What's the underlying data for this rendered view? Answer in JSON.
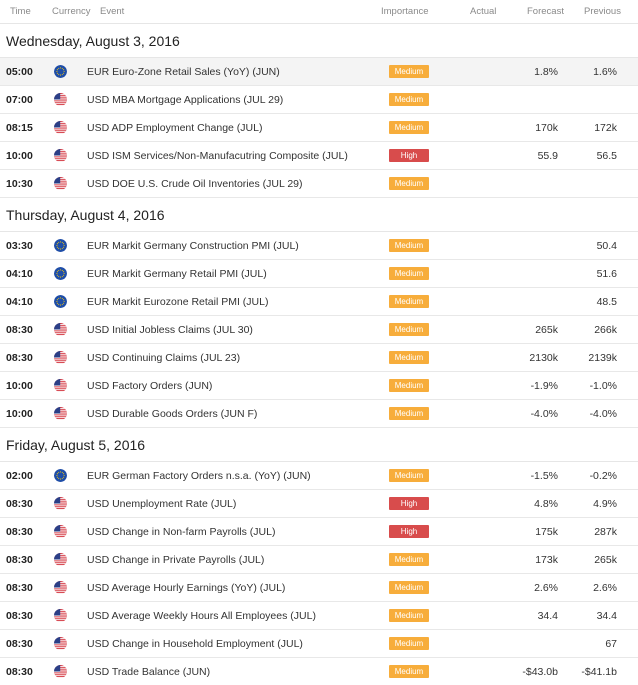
{
  "columns": {
    "time": "Time",
    "currency": "Currency",
    "event": "Event",
    "importance": "Importance",
    "actual": "Actual",
    "forecast": "Forecast",
    "previous": "Previous"
  },
  "days": [
    {
      "title": "Wednesday, August 3, 2016",
      "events": [
        {
          "time": "05:00",
          "flag": "eu-flag-icon",
          "event": "EUR Euro-Zone Retail Sales (YoY) (JUN)",
          "importance": "Medium",
          "level": "medium",
          "actual": "",
          "forecast": "1.8%",
          "previous": "1.6%"
        },
        {
          "time": "07:00",
          "flag": "us-flag-icon",
          "event": "USD MBA Mortgage Applications (JUL 29)",
          "importance": "Medium",
          "level": "medium",
          "actual": "",
          "forecast": "",
          "previous": ""
        },
        {
          "time": "08:15",
          "flag": "us-flag-icon",
          "event": "USD ADP Employment Change (JUL)",
          "importance": "Medium",
          "level": "medium",
          "actual": "",
          "forecast": "170k",
          "previous": "172k"
        },
        {
          "time": "10:00",
          "flag": "us-flag-icon",
          "event": "USD ISM Services/Non-Manufacutring Composite (JUL)",
          "importance": "High",
          "level": "high",
          "actual": "",
          "forecast": "55.9",
          "previous": "56.5"
        },
        {
          "time": "10:30",
          "flag": "us-flag-icon",
          "event": "USD DOE U.S. Crude Oil Inventories (JUL 29)",
          "importance": "Medium",
          "level": "medium",
          "actual": "",
          "forecast": "",
          "previous": ""
        }
      ]
    },
    {
      "title": "Thursday, August 4, 2016",
      "events": [
        {
          "time": "03:30",
          "flag": "eu-flag-icon",
          "event": "EUR Markit Germany Construction PMI (JUL)",
          "importance": "Medium",
          "level": "medium",
          "actual": "",
          "forecast": "",
          "previous": "50.4"
        },
        {
          "time": "04:10",
          "flag": "eu-flag-icon",
          "event": "EUR Markit Germany Retail PMI (JUL)",
          "importance": "Medium",
          "level": "medium",
          "actual": "",
          "forecast": "",
          "previous": "51.6"
        },
        {
          "time": "04:10",
          "flag": "eu-flag-icon",
          "event": "EUR Markit Eurozone Retail PMI (JUL)",
          "importance": "Medium",
          "level": "medium",
          "actual": "",
          "forecast": "",
          "previous": "48.5"
        },
        {
          "time": "08:30",
          "flag": "us-flag-icon",
          "event": "USD Initial Jobless Claims (JUL 30)",
          "importance": "Medium",
          "level": "medium",
          "actual": "",
          "forecast": "265k",
          "previous": "266k"
        },
        {
          "time": "08:30",
          "flag": "us-flag-icon",
          "event": "USD Continuing Claims (JUL 23)",
          "importance": "Medium",
          "level": "medium",
          "actual": "",
          "forecast": "2130k",
          "previous": "2139k"
        },
        {
          "time": "10:00",
          "flag": "us-flag-icon",
          "event": "USD Factory Orders (JUN)",
          "importance": "Medium",
          "level": "medium",
          "actual": "",
          "forecast": "-1.9%",
          "previous": "-1.0%"
        },
        {
          "time": "10:00",
          "flag": "us-flag-icon",
          "event": "USD Durable Goods Orders (JUN F)",
          "importance": "Medium",
          "level": "medium",
          "actual": "",
          "forecast": "-4.0%",
          "previous": "-4.0%"
        }
      ]
    },
    {
      "title": "Friday, August 5, 2016",
      "events": [
        {
          "time": "02:00",
          "flag": "eu-flag-icon",
          "event": "EUR German Factory Orders n.s.a. (YoY) (JUN)",
          "importance": "Medium",
          "level": "medium",
          "actual": "",
          "forecast": "-1.5%",
          "previous": "-0.2%"
        },
        {
          "time": "08:30",
          "flag": "us-flag-icon",
          "event": "USD Unemployment Rate (JUL)",
          "importance": "High",
          "level": "high",
          "actual": "",
          "forecast": "4.8%",
          "previous": "4.9%"
        },
        {
          "time": "08:30",
          "flag": "us-flag-icon",
          "event": "USD Change in Non-farm Payrolls (JUL)",
          "importance": "High",
          "level": "high",
          "actual": "",
          "forecast": "175k",
          "previous": "287k"
        },
        {
          "time": "08:30",
          "flag": "us-flag-icon",
          "event": "USD Change in Private Payrolls (JUL)",
          "importance": "Medium",
          "level": "medium",
          "actual": "",
          "forecast": "173k",
          "previous": "265k"
        },
        {
          "time": "08:30",
          "flag": "us-flag-icon",
          "event": "USD Average Hourly Earnings (YoY) (JUL)",
          "importance": "Medium",
          "level": "medium",
          "actual": "",
          "forecast": "2.6%",
          "previous": "2.6%"
        },
        {
          "time": "08:30",
          "flag": "us-flag-icon",
          "event": "USD Average Weekly Hours All Employees (JUL)",
          "importance": "Medium",
          "level": "medium",
          "actual": "",
          "forecast": "34.4",
          "previous": "34.4"
        },
        {
          "time": "08:30",
          "flag": "us-flag-icon",
          "event": "USD Change in Household Employment (JUL)",
          "importance": "Medium",
          "level": "medium",
          "actual": "",
          "forecast": "",
          "previous": "67"
        },
        {
          "time": "08:30",
          "flag": "us-flag-icon",
          "event": "USD Trade Balance (JUN)",
          "importance": "Medium",
          "level": "medium",
          "actual": "",
          "forecast": "-$43.0b",
          "previous": "-$41.1b"
        }
      ]
    }
  ],
  "colors": {
    "medium": "#f7ad3b",
    "high": "#d84c4c"
  }
}
